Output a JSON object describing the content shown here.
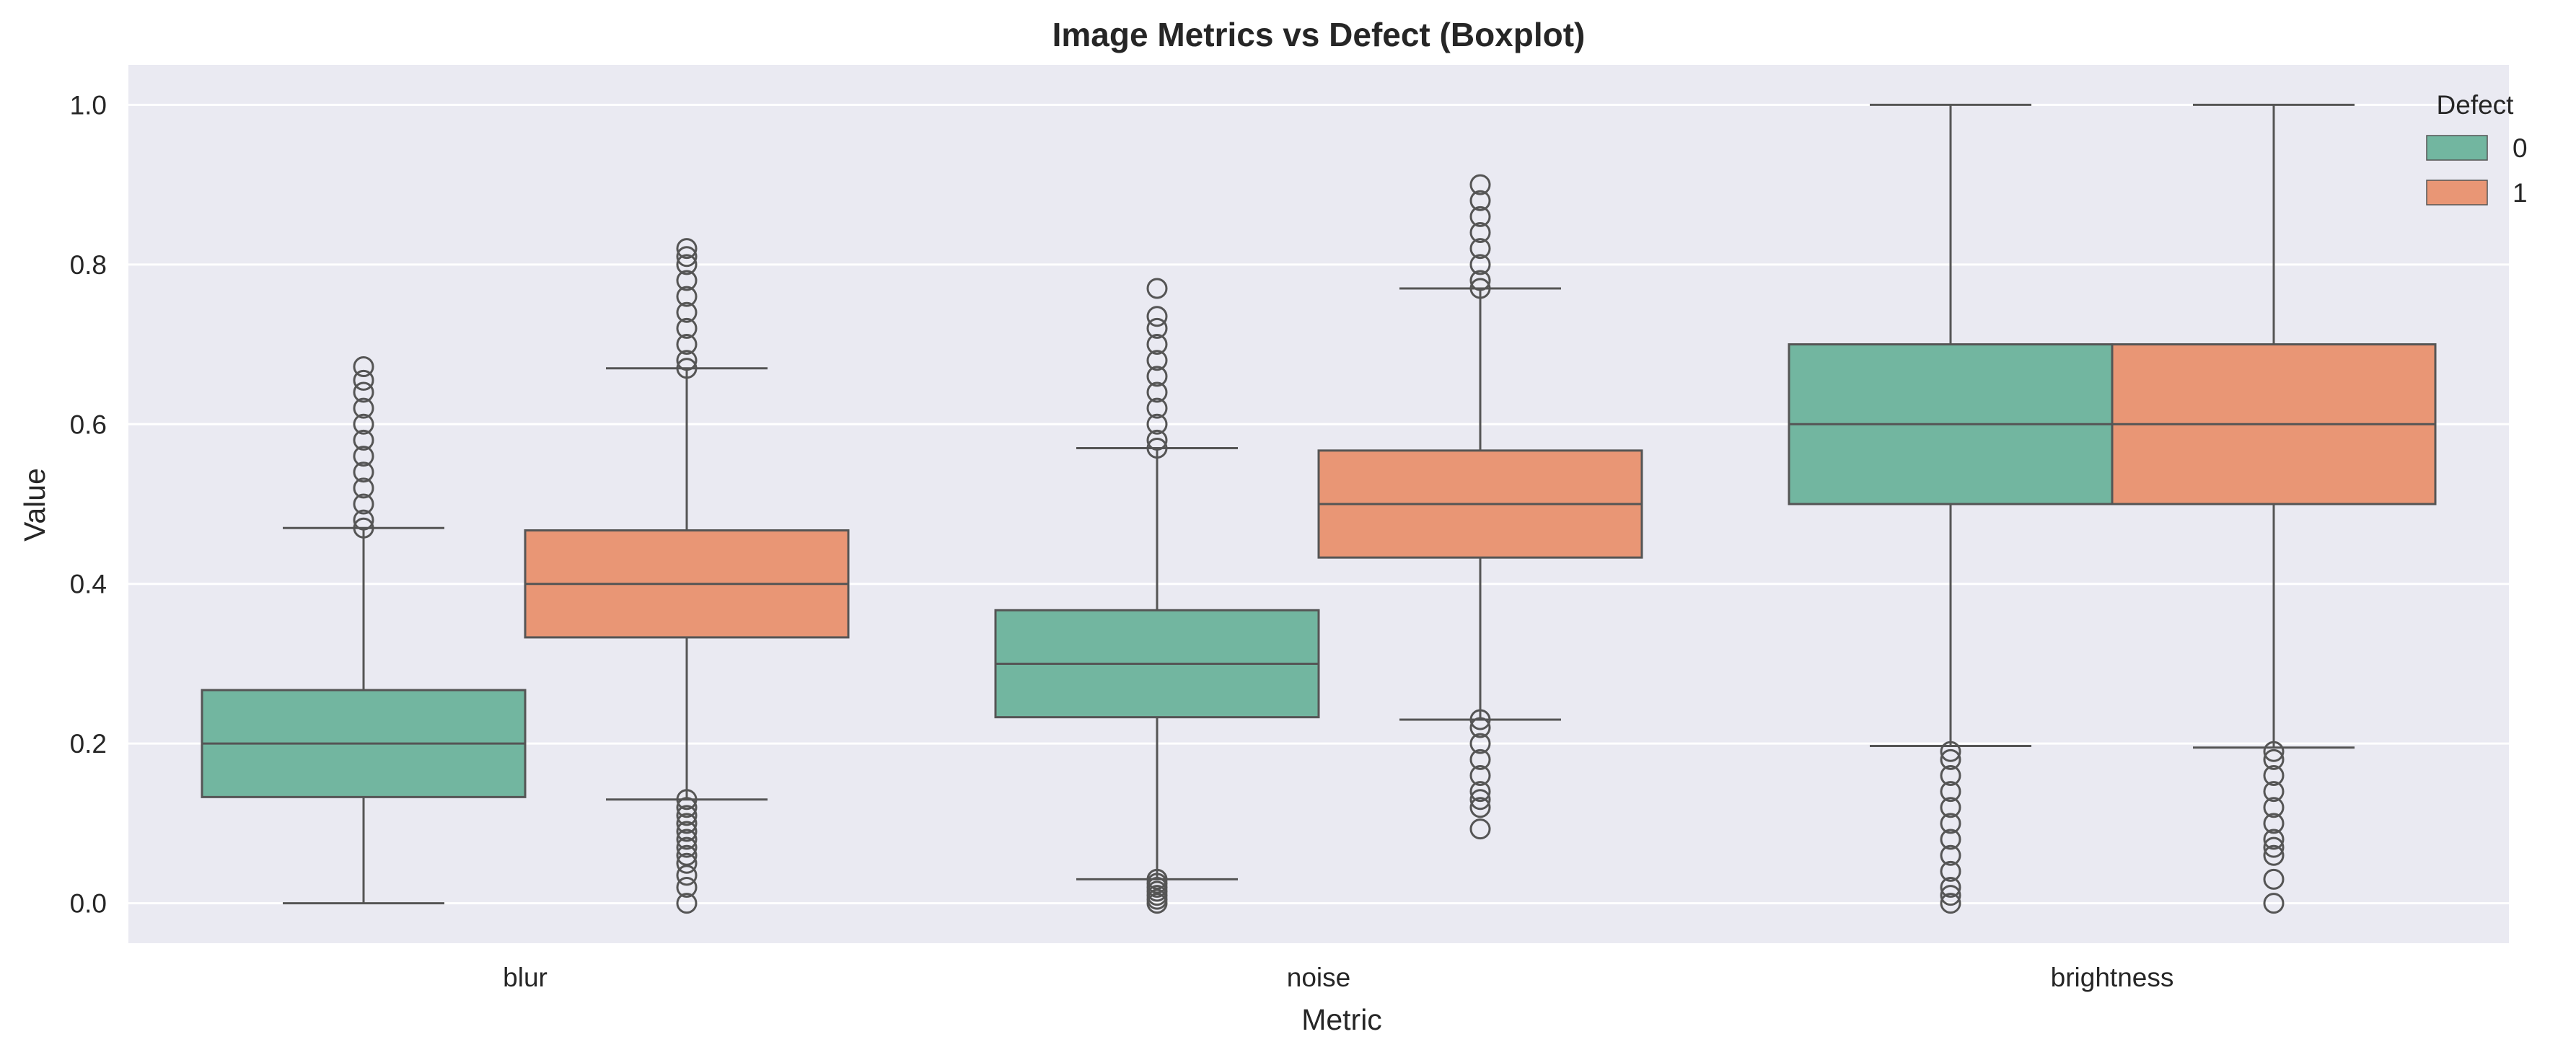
{
  "chart_data": {
    "type": "boxplot",
    "title": "Image Metrics vs Defect (Boxplot)",
    "xlabel": "Metric",
    "ylabel": "Value",
    "categories": [
      "blur",
      "noise",
      "brightness"
    ],
    "ylim": [
      -0.05,
      1.05
    ],
    "yticks": [
      "0.0",
      "0.2",
      "0.4",
      "0.6",
      "0.8",
      "1.0"
    ],
    "grid": true,
    "legend": {
      "title": "Defect",
      "placement": "top-right",
      "entries": [
        "0",
        "1"
      ]
    },
    "series": [
      {
        "name": "0",
        "color": "#72b6a0",
        "boxes": [
          {
            "category": "blur",
            "whisker_low": 0.0,
            "q1": 0.133,
            "median": 0.2,
            "q3": 0.267,
            "whisker_high": 0.47,
            "outliers": [
              0.47,
              0.48,
              0.5,
              0.52,
              0.54,
              0.56,
              0.58,
              0.6,
              0.62,
              0.64,
              0.655,
              0.672
            ]
          },
          {
            "category": "noise",
            "whisker_low": 0.03,
            "q1": 0.233,
            "median": 0.3,
            "q3": 0.367,
            "whisker_high": 0.57,
            "outliers": [
              0.0,
              0.005,
              0.01,
              0.015,
              0.02,
              0.025,
              0.03,
              0.57,
              0.58,
              0.6,
              0.62,
              0.64,
              0.66,
              0.68,
              0.7,
              0.72,
              0.735,
              0.77
            ]
          },
          {
            "category": "brightness",
            "whisker_low": 0.197,
            "q1": 0.5,
            "median": 0.6,
            "q3": 0.7,
            "whisker_high": 1.0,
            "outliers": [
              0.0,
              0.01,
              0.02,
              0.04,
              0.06,
              0.08,
              0.1,
              0.12,
              0.14,
              0.16,
              0.18,
              0.19
            ]
          }
        ]
      },
      {
        "name": "1",
        "color": "#e99675",
        "boxes": [
          {
            "category": "blur",
            "whisker_low": 0.13,
            "q1": 0.333,
            "median": 0.4,
            "q3": 0.467,
            "whisker_high": 0.67,
            "outliers": [
              0.0,
              0.02,
              0.035,
              0.05,
              0.06,
              0.07,
              0.08,
              0.09,
              0.1,
              0.11,
              0.12,
              0.13,
              0.67,
              0.68,
              0.7,
              0.72,
              0.74,
              0.76,
              0.78,
              0.8,
              0.81,
              0.82
            ]
          },
          {
            "category": "noise",
            "whisker_low": 0.23,
            "q1": 0.433,
            "median": 0.5,
            "q3": 0.567,
            "whisker_high": 0.77,
            "outliers": [
              0.093,
              0.12,
              0.13,
              0.14,
              0.16,
              0.18,
              0.2,
              0.22,
              0.23,
              0.77,
              0.78,
              0.8,
              0.82,
              0.84,
              0.86,
              0.88,
              0.9
            ]
          },
          {
            "category": "brightness",
            "whisker_low": 0.195,
            "q1": 0.5,
            "median": 0.6,
            "q3": 0.7,
            "whisker_high": 1.0,
            "outliers": [
              0.0,
              0.03,
              0.06,
              0.07,
              0.08,
              0.1,
              0.12,
              0.14,
              0.16,
              0.18,
              0.19
            ]
          }
        ]
      }
    ]
  }
}
